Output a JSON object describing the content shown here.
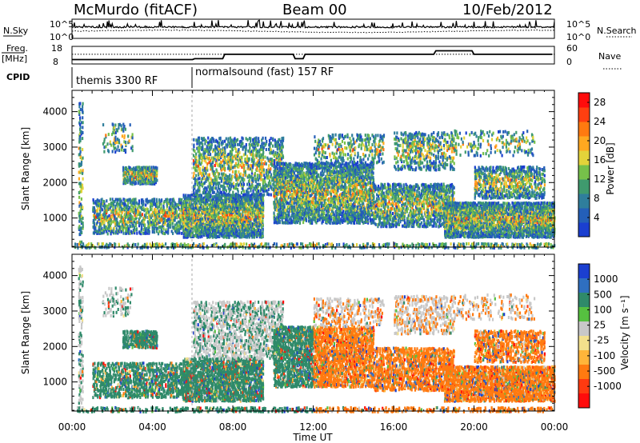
{
  "header": {
    "station": "McMurdo (fitACF)",
    "beam": "Beam 00",
    "date": "10/Feb/2012"
  },
  "labels": {
    "nsky": "N.Sky",
    "nsearch": "N.Search",
    "freq_line1": "Freq.",
    "freq_line2": "[MHz]",
    "nave": "Nave",
    "cpid": "CPID",
    "nsky_tick_hi": "10^5",
    "nsky_tick_lo": "10^0",
    "nsearch_tick_hi": "10^5",
    "nsearch_tick_lo": "10^0",
    "freq_tick_hi": "18",
    "freq_tick_lo": "8",
    "nave_tick_hi": "60",
    "nave_tick_lo": "0"
  },
  "cpid": {
    "mode1": "themis 3300 RF",
    "mode2": "normalsound (fast) 157 RF"
  },
  "chart_data": [
    {
      "type": "heatmap",
      "name": "power",
      "ylabel": "Slant Range [km]",
      "xlabel": "",
      "x_ticks": [
        "00:00",
        "04:00",
        "08:00",
        "12:00",
        "16:00",
        "20:00",
        "00:00"
      ],
      "y_ticks": [
        1000,
        2000,
        3000,
        4000
      ],
      "xlim_hours": [
        0,
        24
      ],
      "ylim_km": [
        180,
        4600
      ],
      "colorbar": {
        "label": "Power [dB]",
        "ticks": [
          4,
          8,
          12,
          16,
          20,
          24,
          28
        ],
        "colors": [
          "#1b3fd0",
          "#245fb8",
          "#2f7e9c",
          "#3f9a6e",
          "#76c04a",
          "#e3d33a",
          "#ffa820",
          "#ff7a10",
          "#ff3f10",
          "#ff0c0c"
        ]
      }
    },
    {
      "type": "heatmap",
      "name": "velocity",
      "ylabel": "Slant Range [km]",
      "xlabel": "Time UT",
      "x_ticks": [
        "00:00",
        "04:00",
        "08:00",
        "12:00",
        "16:00",
        "20:00",
        "00:00"
      ],
      "y_ticks": [
        1000,
        2000,
        3000,
        4000
      ],
      "xlim_hours": [
        0,
        24
      ],
      "ylim_km": [
        180,
        4600
      ],
      "colorbar": {
        "label": "Velocity [m s⁻¹]",
        "ticks": [
          1000,
          500,
          100,
          25,
          -25,
          -100,
          -500,
          -1000
        ],
        "colors": [
          "#1b3fd0",
          "#2f6fc0",
          "#2f8a6a",
          "#56c040",
          "#c8c8c8",
          "#f3e08c",
          "#ffb53a",
          "#ff7a10",
          "#ff3a10",
          "#ff0c0c"
        ]
      }
    }
  ]
}
